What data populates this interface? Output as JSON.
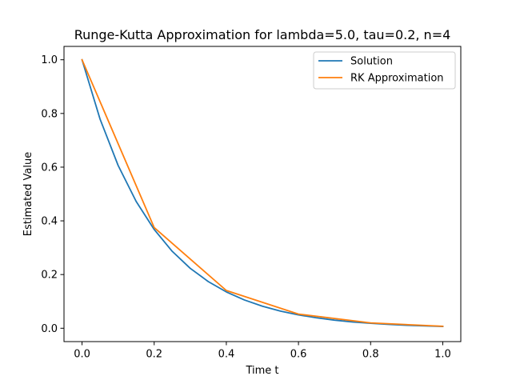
{
  "chart_data": {
    "type": "line",
    "title": "Runge-Kutta Approximation for lambda=5.0, tau=0.2, n=4",
    "xlabel": "Time t",
    "ylabel": "Estimated Value",
    "xlim": [
      -0.05,
      1.05
    ],
    "ylim": [
      -0.04975,
      1.04975
    ],
    "xticks": [
      0.0,
      0.2,
      0.4,
      0.6,
      0.8,
      1.0
    ],
    "xtick_labels": [
      "0.0",
      "0.2",
      "0.4",
      "0.6",
      "0.8",
      "1.0"
    ],
    "yticks": [
      0.0,
      0.2,
      0.4,
      0.6,
      0.8,
      1.0
    ],
    "ytick_labels": [
      "0.0",
      "0.2",
      "0.4",
      "0.6",
      "0.8",
      "1.0"
    ],
    "grid": false,
    "legend_position": "top-right",
    "series": [
      {
        "name": "Solution",
        "color": "#1f77b4",
        "x": [
          0.0,
          0.05,
          0.1,
          0.15,
          0.2,
          0.25,
          0.3,
          0.35,
          0.4,
          0.45,
          0.5,
          0.55,
          0.6,
          0.65,
          0.7,
          0.75,
          0.8,
          0.85,
          0.9,
          0.95,
          1.0
        ],
        "y": [
          1.0,
          0.7788,
          0.6065,
          0.4724,
          0.3679,
          0.2865,
          0.2231,
          0.1738,
          0.1353,
          0.1054,
          0.0821,
          0.0639,
          0.0498,
          0.0388,
          0.0302,
          0.0235,
          0.0183,
          0.0143,
          0.0111,
          0.0087,
          0.0067
        ]
      },
      {
        "name": "RK Approximation",
        "color": "#ff7f0e",
        "x": [
          0.0,
          0.2,
          0.4,
          0.6,
          0.8,
          1.0
        ],
        "y": [
          1.0,
          0.375,
          0.1406,
          0.0527,
          0.0198,
          0.0074
        ]
      }
    ]
  }
}
